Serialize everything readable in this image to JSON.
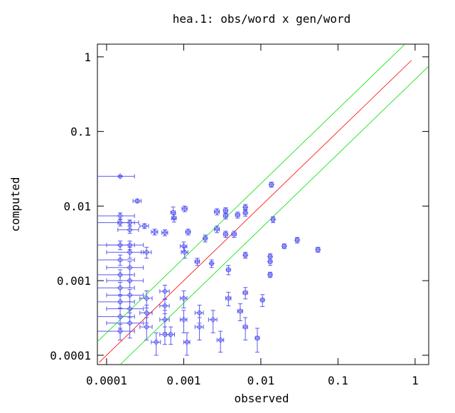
{
  "chart_data": {
    "type": "scatter",
    "title": "hea.1: obs/word x gen/word",
    "x_label": "observed",
    "y_label": "computed",
    "xscale": "log",
    "yscale": "log",
    "xlim": [
      7.6e-05,
      1.5
    ],
    "ylim": [
      7.5e-05,
      1.48
    ],
    "xticks": [
      0.0001,
      0.001,
      0.01,
      0.1,
      1
    ],
    "yticks": [
      0.0001,
      0.001,
      0.01,
      0.1,
      1
    ],
    "series": [
      {
        "color": "#5a5af0",
        "x": [
          0.00015,
          0.00025,
          0.00015,
          0.00015,
          0.0002,
          0.0002,
          0.00031,
          0.00042,
          0.00057,
          0.00073,
          0.00075,
          0.00103,
          0.00114,
          0.0015,
          0.0027,
          0.0035,
          0.0035,
          0.0063,
          0.0063,
          0.005,
          0.0027,
          0.0019,
          0.0035,
          0.0045,
          0.0137,
          0.0144,
          0.0201,
          0.0296,
          0.055,
          0.0132,
          0.0132,
          0.0063,
          0.0038,
          0.0023,
          0.001,
          0.00103,
          0.00033,
          0.0002,
          0.00015,
          0.0002,
          0.00015,
          0.0002,
          0.00015,
          0.0002,
          0.00015,
          0.0002,
          0.00015,
          0.0002,
          0.00015,
          0.0002,
          0.00015,
          0.00033,
          0.00033,
          0.00033,
          0.00057,
          0.00057,
          0.00057,
          0.00057,
          0.001,
          0.001,
          0.0016,
          0.0016,
          0.0024,
          0.003,
          0.0038,
          0.0054,
          0.0063,
          0.009,
          0.0063,
          0.0105,
          0.0011,
          0.00068,
          0.00044,
          0.0132
        ],
        "values": [
          0.025,
          0.0117,
          0.0074,
          0.006,
          0.006,
          0.0048,
          0.0054,
          0.0045,
          0.0044,
          0.0082,
          0.0069,
          0.0092,
          0.0045,
          0.0018,
          0.0084,
          0.0087,
          0.0074,
          0.0096,
          0.0081,
          0.0076,
          0.0049,
          0.0037,
          0.0042,
          0.0042,
          0.0194,
          0.0066,
          0.0029,
          0.0035,
          0.0026,
          0.0021,
          0.0012,
          0.0022,
          0.0014,
          0.0017,
          0.0029,
          0.0024,
          0.0024,
          0.003,
          0.003,
          0.0024,
          0.0019,
          0.0015,
          0.0012,
          0.001,
          0.0008,
          0.00064,
          0.00052,
          0.00042,
          0.00033,
          0.00027,
          0.00021,
          0.00058,
          0.00037,
          0.00024,
          0.00072,
          0.00046,
          0.0003,
          0.00019,
          0.00058,
          0.0003,
          0.00037,
          0.00024,
          0.0003,
          0.00016,
          0.00058,
          0.00039,
          0.00024,
          0.00017,
          0.00069,
          0.00055,
          0.00015,
          0.00019,
          0.00015,
          0.0018
        ],
        "x_err": [
          8e-05,
          3e-05,
          8e-05,
          8e-05,
          6e-05,
          6e-05,
          4e-05,
          4e-05,
          5e-05,
          5e-05,
          5e-05,
          8e-05,
          8e-05,
          0.0001,
          0.0002,
          0.0002,
          0.0002,
          0.0003,
          0.0003,
          0.0003,
          0.0002,
          0.0001,
          0.0002,
          0.0003,
          0.0007,
          0.0007,
          0.001,
          0.0015,
          0.003,
          0.0007,
          0.0007,
          0.0003,
          0.0002,
          0.0001,
          0.0001,
          0.0001,
          5e-05,
          0.0001,
          8e-05,
          0.0001,
          8e-05,
          0.0001,
          8e-05,
          0.0001,
          8e-05,
          0.0001,
          8e-05,
          0.0001,
          8e-05,
          0.0001,
          8e-05,
          6e-05,
          6e-05,
          6e-05,
          8e-05,
          8e-05,
          8e-05,
          8e-05,
          0.0001,
          0.0001,
          0.0002,
          0.0002,
          0.0003,
          0.0003,
          0.0003,
          0.0004,
          0.0004,
          0.0005,
          0.0004,
          0.0005,
          0.0001,
          8e-05,
          6e-05,
          0.0007
        ],
        "y_err": [
          0.0006,
          0.0006,
          0.0007,
          0.0006,
          0.0005,
          0.0005,
          0.0004,
          0.0004,
          0.0004,
          0.0015,
          0.0008,
          0.0008,
          0.0004,
          0.0002,
          0.0008,
          0.0008,
          0.0007,
          0.0009,
          0.0008,
          0.0007,
          0.0005,
          0.0004,
          0.0004,
          0.0004,
          0.0015,
          0.0006,
          0.0002,
          0.0003,
          0.0002,
          0.0002,
          0.0001,
          0.0002,
          0.0002,
          0.0002,
          0.0004,
          0.0004,
          0.0004,
          0.0004,
          0.0004,
          0.0004,
          0.0003,
          0.0003,
          0.0002,
          0.0002,
          0.00015,
          0.00012,
          0.0001,
          0.0001,
          0.0001,
          0.0001,
          5e-05,
          0.00015,
          0.0001,
          8e-05,
          0.00015,
          0.0001,
          0.0001,
          5e-05,
          0.00015,
          0.0001,
          0.0001,
          8e-05,
          0.0001,
          5e-05,
          0.00012,
          0.0001,
          8e-05,
          6e-05,
          0.00012,
          0.0001,
          5e-05,
          5e-05,
          5e-05,
          0.0002
        ]
      }
    ],
    "reference_lines": [
      {
        "color": "#00e000",
        "x": [
          4e-05,
          0.8
        ],
        "values": [
          8e-05,
          1.6
        ]
      },
      {
        "color": "#ff0000",
        "x": [
          8e-05,
          0.9
        ],
        "values": [
          8e-05,
          0.9
        ]
      },
      {
        "color": "#00e000",
        "x": [
          0.00015,
          1.5
        ],
        "values": [
          7.5e-05,
          0.75
        ]
      }
    ]
  }
}
